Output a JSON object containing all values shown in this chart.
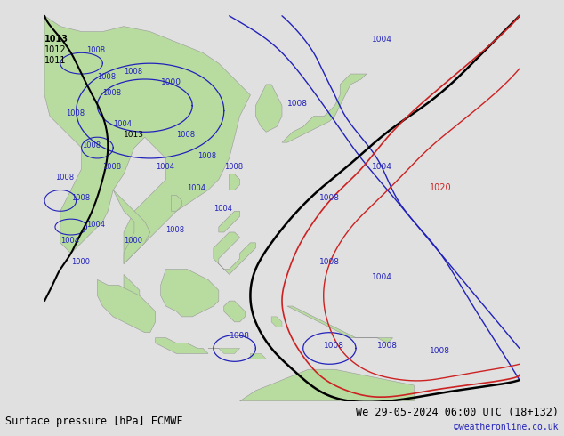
{
  "title_bottom_left": "Surface pressure [hPa] ECMWF",
  "title_bottom_right": "We 29-05-2024 06:00 UTC (18+132)",
  "credit": "©weatheronline.co.uk",
  "bg_color": "#e0e0e0",
  "land_color": "#b8dba0",
  "ocean_color": "#dcdcdc",
  "contour_blue": "#2222bb",
  "contour_black": "#000000",
  "contour_red": "#cc2222",
  "contour_gray": "#999999",
  "label_blue": "#2222bb",
  "label_black": "#000000",
  "label_red": "#cc2222",
  "xlim": [
    85,
    175
  ],
  "ylim": [
    -18,
    58
  ],
  "figsize": [
    6.34,
    4.9
  ],
  "dpi": 100
}
